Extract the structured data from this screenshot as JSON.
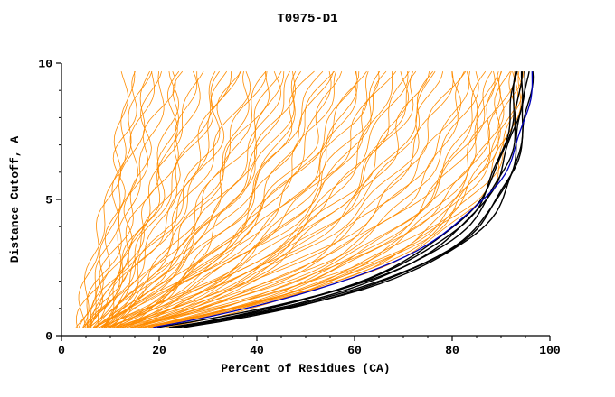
{
  "window": {
    "title": "T0975-D1"
  },
  "chart_data": {
    "type": "line",
    "title": "T0975-D1",
    "xlabel": "Percent of Residues (CA)",
    "ylabel": "Distance Cutoff, A",
    "xlim": [
      0,
      100
    ],
    "ylim": [
      0,
      10
    ],
    "x_ticks": [
      0,
      20,
      40,
      60,
      80,
      100
    ],
    "y_ticks": [
      0,
      5,
      10
    ],
    "x_minor_step": 5,
    "y_minor_step": 1,
    "grid": false,
    "legend": "none",
    "y_range_drawn": [
      0.3,
      9.7
    ],
    "colors": {
      "orange_models": "#ff8c00",
      "black_models": "#000000",
      "blue_model": "#0000bb",
      "axis": "#000000"
    },
    "curve_param_format": "[x_start_percent, x_top_percent, rise_rate, wiggle_amplitude, seed]",
    "series_groups": [
      {
        "name": "orange-model-curves",
        "color": "#ff8c00",
        "width": 0.8,
        "curves": [
          [
            3,
            14,
            0.6,
            1.2,
            1
          ],
          [
            4,
            16,
            0.8,
            1.5,
            2
          ],
          [
            3.5,
            18,
            0.7,
            1.1,
            3
          ],
          [
            5,
            20,
            1.0,
            1.4,
            4
          ],
          [
            4,
            22,
            0.9,
            1.6,
            5
          ],
          [
            5,
            24,
            1.2,
            1.3,
            6
          ],
          [
            6,
            26,
            1.1,
            1.5,
            7
          ],
          [
            4.5,
            28,
            0.8,
            1.2,
            8
          ],
          [
            3,
            15,
            0.5,
            1.0,
            9
          ],
          [
            4,
            19,
            0.9,
            1.3,
            10
          ],
          [
            5,
            21,
            1.0,
            1.1,
            11
          ],
          [
            6,
            25,
            1.3,
            1.4,
            12
          ],
          [
            3.5,
            17,
            0.6,
            1.2,
            13
          ],
          [
            5.5,
            27,
            1.2,
            1.5,
            14
          ],
          [
            4,
            30,
            1.0,
            1.5,
            15
          ],
          [
            5,
            32,
            1.2,
            1.3,
            16
          ],
          [
            6,
            34,
            1.4,
            1.6,
            17
          ],
          [
            4.5,
            36,
            1.1,
            1.2,
            18
          ],
          [
            5,
            38,
            1.3,
            1.5,
            19
          ],
          [
            6,
            40,
            1.5,
            1.4,
            20
          ],
          [
            7,
            42,
            1.6,
            1.3,
            21
          ],
          [
            5,
            44,
            1.2,
            1.6,
            22
          ],
          [
            6,
            46,
            1.5,
            1.2,
            23
          ],
          [
            7,
            48,
            1.7,
            1.5,
            24
          ],
          [
            5.5,
            50,
            1.4,
            1.3,
            25
          ],
          [
            6,
            52,
            1.6,
            1.6,
            26
          ],
          [
            7,
            54,
            1.8,
            1.4,
            27
          ],
          [
            8,
            56,
            1.9,
            1.2,
            28
          ],
          [
            6,
            58,
            1.7,
            1.5,
            29
          ],
          [
            4,
            33,
            0.9,
            1.4,
            30
          ],
          [
            5,
            37,
            1.1,
            1.6,
            31
          ],
          [
            6,
            41,
            1.3,
            1.3,
            32
          ],
          [
            7,
            45,
            1.5,
            1.5,
            33
          ],
          [
            5,
            49,
            1.3,
            1.2,
            34
          ],
          [
            6,
            53,
            1.6,
            1.4,
            35
          ],
          [
            7,
            57,
            1.8,
            1.6,
            36
          ],
          [
            4.5,
            35,
            1.0,
            1.3,
            37
          ],
          [
            5.5,
            43,
            1.2,
            1.5,
            38
          ],
          [
            6.5,
            51,
            1.5,
            1.2,
            39
          ],
          [
            7.5,
            55,
            1.7,
            1.4,
            40
          ],
          [
            5,
            60,
            1.8,
            1.5,
            41
          ],
          [
            6,
            62,
            2.0,
            1.3,
            42
          ],
          [
            7,
            64,
            2.1,
            1.6,
            43
          ],
          [
            8,
            66,
            2.2,
            1.2,
            44
          ],
          [
            6,
            68,
            2.0,
            1.5,
            45
          ],
          [
            7,
            70,
            2.3,
            1.3,
            46
          ],
          [
            8,
            72,
            2.4,
            1.6,
            47
          ],
          [
            6.5,
            74,
            2.2,
            1.4,
            48
          ],
          [
            7,
            76,
            2.5,
            1.2,
            49
          ],
          [
            8,
            78,
            2.6,
            1.5,
            50
          ],
          [
            7.5,
            80,
            2.7,
            1.3,
            51
          ],
          [
            8,
            82,
            2.8,
            1.6,
            52
          ],
          [
            9,
            84,
            3.0,
            1.2,
            53
          ],
          [
            5.5,
            61,
            1.9,
            1.4,
            54
          ],
          [
            6.5,
            65,
            2.1,
            1.5,
            55
          ],
          [
            7.5,
            69,
            2.3,
            1.2,
            56
          ],
          [
            8.5,
            73,
            2.5,
            1.5,
            57
          ],
          [
            6,
            77,
            2.4,
            1.3,
            58
          ],
          [
            7,
            81,
            2.7,
            1.5,
            59
          ],
          [
            8,
            83,
            2.9,
            1.2,
            60
          ],
          [
            5,
            63,
            1.8,
            1.4,
            61
          ],
          [
            6,
            67,
            2.0,
            1.6,
            62
          ],
          [
            7,
            71,
            2.2,
            1.3,
            63
          ],
          [
            8,
            75,
            2.5,
            1.5,
            64
          ],
          [
            6,
            85,
            3.1,
            1.2,
            65
          ],
          [
            7,
            86,
            3.2,
            1.4,
            66
          ],
          [
            8,
            87,
            3.3,
            1.1,
            67
          ],
          [
            9,
            88,
            3.4,
            1.3,
            68
          ],
          [
            7,
            89,
            3.5,
            1.2,
            69
          ],
          [
            8,
            90,
            3.6,
            1.4,
            70
          ],
          [
            9,
            91,
            3.7,
            1.1,
            71
          ],
          [
            8,
            92,
            3.8,
            1.3,
            72
          ],
          [
            9,
            93,
            3.9,
            1.2,
            73
          ],
          [
            10,
            94,
            4.0,
            1.1,
            74
          ],
          [
            8.5,
            95,
            4.1,
            1.0,
            75
          ],
          [
            7.5,
            88,
            3.4,
            1.3,
            76
          ],
          [
            8.5,
            90,
            3.6,
            1.1,
            77
          ],
          [
            9.5,
            92,
            3.8,
            1.2,
            78
          ],
          [
            7,
            93,
            3.9,
            1.0,
            79
          ],
          [
            8,
            94,
            4.0,
            1.2,
            80
          ]
        ]
      },
      {
        "name": "black-model-curves",
        "color": "#000000",
        "width": 1.4,
        "curves": [
          [
            9,
            93,
            4.8,
            0.5,
            81
          ],
          [
            10,
            94,
            5.0,
            0.5,
            82
          ],
          [
            11,
            95,
            5.2,
            0.4,
            83
          ],
          [
            12,
            94.5,
            4.6,
            0.5,
            84
          ],
          [
            14,
            93.5,
            4.4,
            0.4,
            85
          ],
          [
            10,
            95.5,
            5.4,
            0.4,
            86
          ],
          [
            13,
            96,
            5.0,
            0.5,
            87
          ]
        ]
      },
      {
        "name": "blue-model-curve",
        "color": "#0000bb",
        "width": 1.3,
        "curves": [
          [
            8,
            97,
            4.0,
            0.4,
            88
          ]
        ]
      }
    ]
  }
}
